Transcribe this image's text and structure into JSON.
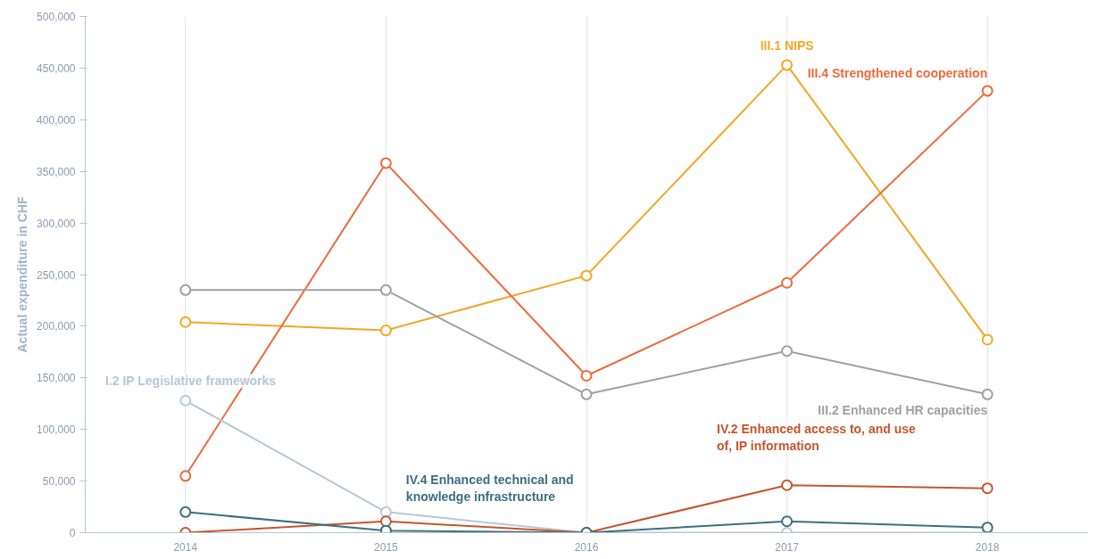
{
  "chart_data": {
    "type": "line",
    "ylabel": "Actual expenditure in CHF",
    "x": [
      2014,
      2015,
      2016,
      2017,
      2018
    ],
    "xlim": [
      2013.5,
      2018.5
    ],
    "xticks": [
      2014,
      2015,
      2016,
      2017,
      2018
    ],
    "ylim": [
      0,
      500000
    ],
    "yticks": [
      {
        "value": 0,
        "label": "0"
      },
      {
        "value": 50000,
        "label": "50,000"
      },
      {
        "value": 100000,
        "label": "100,000"
      },
      {
        "value": 150000,
        "label": "150,000"
      },
      {
        "value": 200000,
        "label": "200,000"
      },
      {
        "value": 250000,
        "label": "250,000"
      },
      {
        "value": 300000,
        "label": "300,000"
      },
      {
        "value": 350000,
        "label": "350,000"
      },
      {
        "value": 400000,
        "label": "400,000"
      },
      {
        "value": 450000,
        "label": "450,000"
      },
      {
        "value": 500000,
        "label": "500,000"
      }
    ],
    "grid": "x",
    "marker": "circle",
    "line_style": "solid",
    "series": [
      {
        "name": "III.1 NIPS",
        "color": "#f5a623",
        "values": [
          204000,
          196000,
          249000,
          453000,
          187000
        ]
      },
      {
        "name": "III.4 Strengthened cooperation",
        "color": "#ee6a3c",
        "values": [
          55000,
          358000,
          152000,
          242000,
          428000
        ]
      },
      {
        "name": "III.2 Enhanced HR capacities",
        "color": "#a0a0a0",
        "values": [
          235000,
          235000,
          134000,
          176000,
          134000
        ]
      },
      {
        "name": "I.2 IP Legislative frameworks",
        "color": "#b4c8d8",
        "values": [
          128000,
          20000,
          0,
          0,
          0
        ]
      },
      {
        "name": "IV.2 Enhanced access to, and use of, IP  information",
        "color": "#c4552e",
        "values": [
          0,
          11000,
          0,
          46000,
          43000
        ]
      },
      {
        "name": "IV.4 Enhanced technical and knowledge infrastructure",
        "color": "#3d6e80",
        "values": [
          20000,
          2000,
          0,
          11000,
          5000
        ]
      }
    ]
  }
}
